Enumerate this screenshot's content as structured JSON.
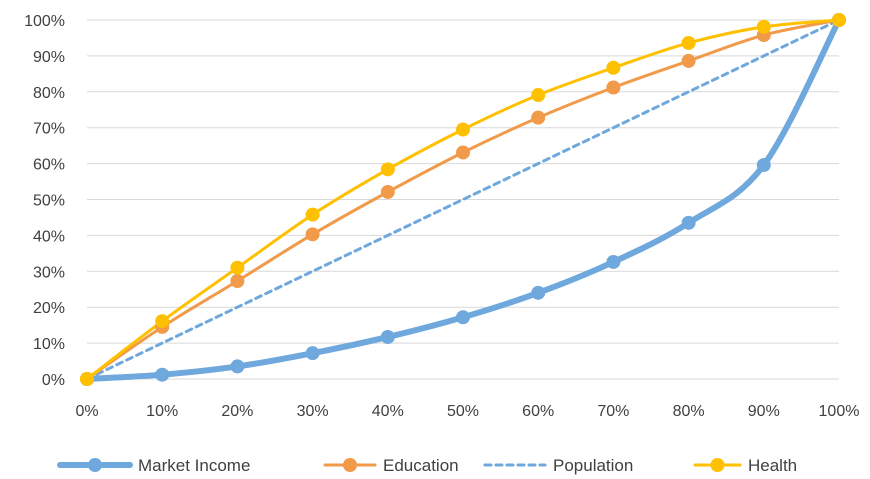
{
  "chart_data": {
    "type": "line",
    "title": "",
    "xlabel": "",
    "ylabel": "",
    "x": [
      0,
      10,
      20,
      30,
      40,
      50,
      60,
      70,
      80,
      90,
      100
    ],
    "x_tick_labels": [
      "0%",
      "10%",
      "20%",
      "30%",
      "40%",
      "50%",
      "60%",
      "70%",
      "80%",
      "90%",
      "100%"
    ],
    "y_tick_labels": [
      "0%",
      "10%",
      "20%",
      "30%",
      "40%",
      "50%",
      "60%",
      "70%",
      "80%",
      "90%",
      "100%"
    ],
    "xlim": [
      0,
      100
    ],
    "ylim": [
      0,
      100
    ],
    "grid": "horizontal",
    "legend_position": "bottom",
    "series": [
      {
        "name": "Market Income",
        "color": "#6FA8DC",
        "style": "thick-smooth",
        "markers": true,
        "values": [
          0,
          1.2,
          3.5,
          7.2,
          11.7,
          17.2,
          24,
          32.6,
          43.5,
          59.6,
          100
        ]
      },
      {
        "name": "Education",
        "color": "#F09A4A",
        "style": "solid",
        "markers": true,
        "values": [
          0,
          14.5,
          27.3,
          40.3,
          52.1,
          63.1,
          72.8,
          81.2,
          88.6,
          95.8,
          100
        ]
      },
      {
        "name": "Population",
        "color": "#6FA8DC",
        "style": "dashed",
        "markers": false,
        "values": [
          0,
          10,
          20,
          30,
          40,
          50,
          60,
          70,
          80,
          90,
          100
        ]
      },
      {
        "name": "Health",
        "color": "#FFC000",
        "style": "solid",
        "markers": true,
        "values": [
          0,
          16.1,
          31,
          45.8,
          58.4,
          69.5,
          79.1,
          86.7,
          93.6,
          98.1,
          100
        ]
      }
    ]
  }
}
